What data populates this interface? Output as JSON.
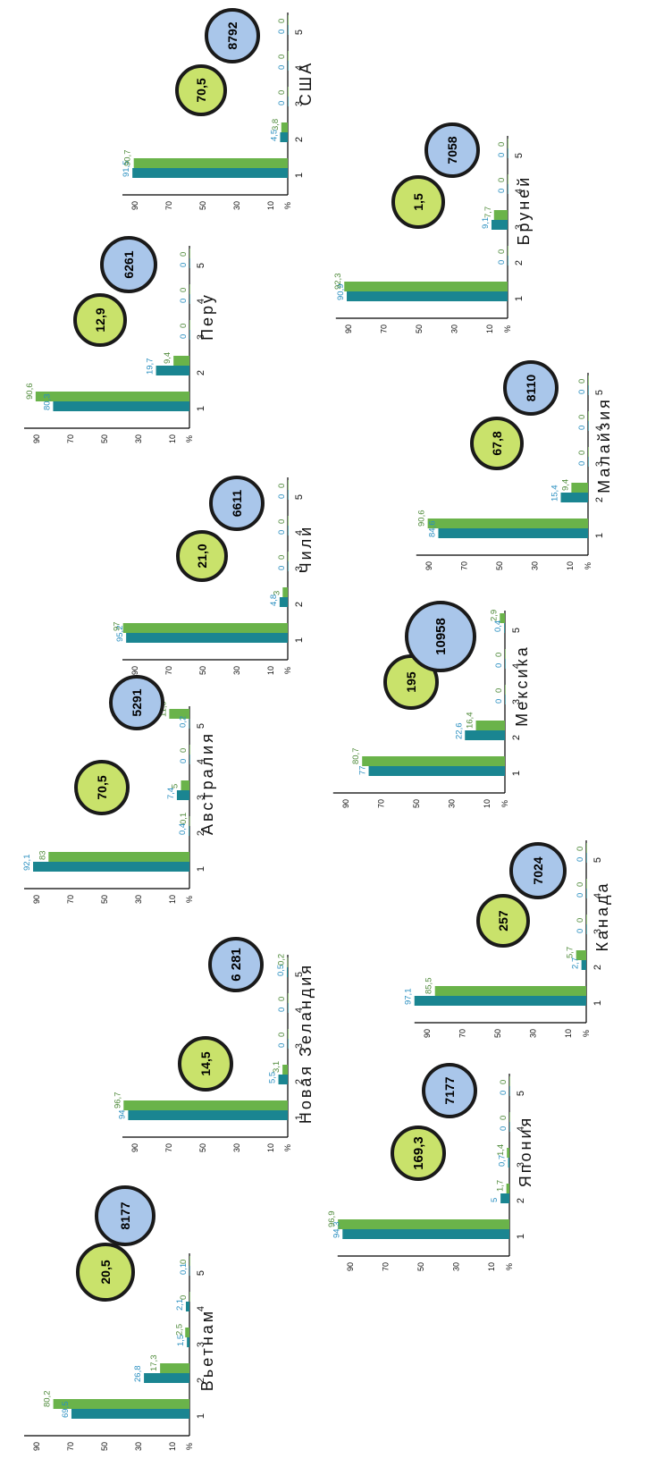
{
  "colors": {
    "series1": "#1a8591",
    "series2": "#6ab34a",
    "label1": "#2a8fc0",
    "label2": "#4f8a3a",
    "axis": "#000000",
    "badge_green": "#c9e26b",
    "badge_blue": "#a9c6ea",
    "badge_ring": "#1a1a1a"
  },
  "chart_data": [
    {
      "type": "bar",
      "title": "Вьетнам",
      "categories": [
        "1",
        "2",
        "3",
        "4",
        "5"
      ],
      "series": [
        {
          "values": [
            69.5,
            26.8,
            1.5,
            2.1,
            0.1
          ],
          "labels": [
            "69,5",
            "26,8",
            "1,5",
            "2,1",
            "0,1"
          ]
        },
        {
          "values": [
            80.2,
            17.3,
            2.5,
            0,
            0
          ],
          "labels": [
            "80,2",
            "17,3",
            "2,5",
            "0",
            "0"
          ]
        }
      ],
      "ticks": [
        "%",
        "10",
        "30",
        "50",
        "70",
        "90"
      ],
      "badges": [
        "20,5",
        "8177"
      ]
    },
    {
      "type": "bar",
      "title": "Новая Зеландия",
      "categories": [
        "1",
        "2",
        "3",
        "4",
        "5"
      ],
      "series": [
        {
          "values": [
            94,
            5.5,
            0,
            0,
            0.5
          ],
          "labels": [
            "94",
            "5,5",
            "0",
            "0",
            "0,5"
          ]
        },
        {
          "values": [
            96.7,
            3.1,
            0,
            0,
            0.2
          ],
          "labels": [
            "96,7",
            "3,1",
            "0",
            "0",
            "0,2"
          ]
        }
      ],
      "ticks": [
        "%",
        "10",
        "30",
        "50",
        "70",
        "90"
      ],
      "badges": [
        "14,5",
        "6 281"
      ]
    },
    {
      "type": "bar",
      "title": "Австралия",
      "categories": [
        "1",
        "2",
        "3",
        "4",
        "5"
      ],
      "series": [
        {
          "values": [
            92.1,
            0.4,
            7.4,
            0,
            0.2
          ],
          "labels": [
            "92,1",
            "0,4",
            "7,4",
            "0",
            "0,2"
          ]
        },
        {
          "values": [
            83,
            0.1,
            5,
            0,
            11.9
          ],
          "labels": [
            "83",
            "0,1",
            "5",
            "0",
            "11,9"
          ]
        }
      ],
      "ticks": [
        "%",
        "10",
        "30",
        "50",
        "70",
        "90"
      ],
      "badges": [
        "70,5",
        "5291"
      ]
    },
    {
      "type": "bar",
      "title": "Чили",
      "categories": [
        "1",
        "2",
        "3",
        "4",
        "5"
      ],
      "series": [
        {
          "values": [
            95.2,
            4.8,
            0,
            0,
            0
          ],
          "labels": [
            "95,2",
            "4,8",
            "0",
            "0",
            "0"
          ]
        },
        {
          "values": [
            97,
            3,
            0,
            0,
            0
          ],
          "labels": [
            "97",
            "3",
            "0",
            "0",
            "0"
          ]
        }
      ],
      "ticks": [
        "%",
        "10",
        "30",
        "50",
        "70",
        "90"
      ],
      "badges": [
        "21,0",
        "6611"
      ]
    },
    {
      "type": "bar",
      "title": "Перу",
      "categories": [
        "1",
        "2",
        "3",
        "4",
        "5"
      ],
      "series": [
        {
          "values": [
            80.3,
            19.7,
            0,
            0,
            0
          ],
          "labels": [
            "80,3",
            "19,7",
            "0",
            "0",
            "0"
          ]
        },
        {
          "values": [
            90.6,
            9.4,
            0,
            0,
            0
          ],
          "labels": [
            "90,6",
            "9,4",
            "0",
            "0",
            "0"
          ]
        }
      ],
      "ticks": [
        "%",
        "10",
        "30",
        "50",
        "70",
        "90"
      ],
      "badges": [
        "12,9",
        "6261"
      ]
    },
    {
      "type": "bar",
      "title": "США",
      "categories": [
        "1",
        "2",
        "3",
        "4",
        "5"
      ],
      "series": [
        {
          "values": [
            91.5,
            4.5,
            0,
            0,
            0
          ],
          "labels": [
            "91,5",
            "4,5",
            "0",
            "0",
            "0"
          ]
        },
        {
          "values": [
            90.7,
            3.8,
            0,
            0,
            0
          ],
          "labels": [
            "90,7",
            "3,8",
            "0",
            "0",
            "0"
          ]
        }
      ],
      "ticks": [
        "%",
        "10",
        "30",
        "50",
        "70",
        "90"
      ],
      "badges": [
        "70,5",
        "8792"
      ]
    },
    {
      "type": "bar",
      "title": "Япония",
      "categories": [
        "1",
        "2",
        "3",
        "4",
        "5"
      ],
      "series": [
        {
          "values": [
            94.3,
            5,
            0.7,
            0,
            0
          ],
          "labels": [
            "94,3",
            "5",
            "0,7",
            "0",
            "0"
          ]
        },
        {
          "values": [
            96.9,
            1.7,
            1.4,
            0,
            0
          ],
          "labels": [
            "96,9",
            "1,7",
            "1,4",
            "0",
            "0"
          ]
        }
      ],
      "ticks": [
        "%",
        "10",
        "30",
        "50",
        "70",
        "90"
      ],
      "badges": [
        "169,3",
        "7177"
      ]
    },
    {
      "type": "bar",
      "title": "Канада",
      "categories": [
        "1",
        "2",
        "3",
        "4",
        "5"
      ],
      "series": [
        {
          "values": [
            97.1,
            2.7,
            0,
            0,
            0
          ],
          "labels": [
            "97,1",
            "2,7",
            "0",
            "0",
            "0"
          ]
        },
        {
          "values": [
            85.5,
            5.7,
            0,
            0,
            0
          ],
          "labels": [
            "85,5",
            "5,7",
            "0",
            "0",
            "0"
          ]
        }
      ],
      "ticks": [
        "%",
        "10",
        "30",
        "50",
        "70",
        "90"
      ],
      "badges": [
        "257",
        "7024"
      ]
    },
    {
      "type": "bar",
      "title": "Мексика",
      "categories": [
        "1",
        "2",
        "3",
        "4",
        "5"
      ],
      "series": [
        {
          "values": [
            77,
            22.6,
            0,
            0,
            0.4
          ],
          "labels": [
            "77",
            "22,6",
            "0",
            "0",
            "0,4"
          ]
        },
        {
          "values": [
            80.7,
            16.4,
            0,
            0,
            2.9
          ],
          "labels": [
            "80,7",
            "16,4",
            "0",
            "0",
            "2,9"
          ]
        }
      ],
      "ticks": [
        "%",
        "10",
        "30",
        "50",
        "70",
        "90"
      ],
      "badges": [
        "195",
        "10958"
      ]
    },
    {
      "type": "bar",
      "title": "Малайзия",
      "categories": [
        "1",
        "2",
        "3",
        "4",
        "5"
      ],
      "series": [
        {
          "values": [
            84.6,
            15.4,
            0,
            0,
            0
          ],
          "labels": [
            "84,6",
            "15,4",
            "0",
            "0",
            "0"
          ]
        },
        {
          "values": [
            90.6,
            9.4,
            0,
            0,
            0
          ],
          "labels": [
            "90,6",
            "9,4",
            "0",
            "0",
            "0"
          ]
        }
      ],
      "ticks": [
        "%",
        "10",
        "30",
        "50",
        "70",
        "90"
      ],
      "badges": [
        "67,8",
        "8110"
      ]
    },
    {
      "type": "bar",
      "title": "Бруней",
      "categories": [
        "1",
        "2",
        "3",
        "4",
        "5"
      ],
      "series": [
        {
          "values": [
            90.9,
            0,
            9.1,
            0,
            0
          ],
          "labels": [
            "90,9",
            "0",
            "9,1",
            "0",
            "0"
          ]
        },
        {
          "values": [
            92.3,
            0,
            7.7,
            0,
            0
          ],
          "labels": [
            "92,3",
            "0",
            "7,7",
            "0",
            "0"
          ]
        }
      ],
      "ticks": [
        "%",
        "10",
        "30",
        "50",
        "70",
        "90"
      ],
      "badges": [
        "1,5",
        "7058"
      ]
    }
  ]
}
